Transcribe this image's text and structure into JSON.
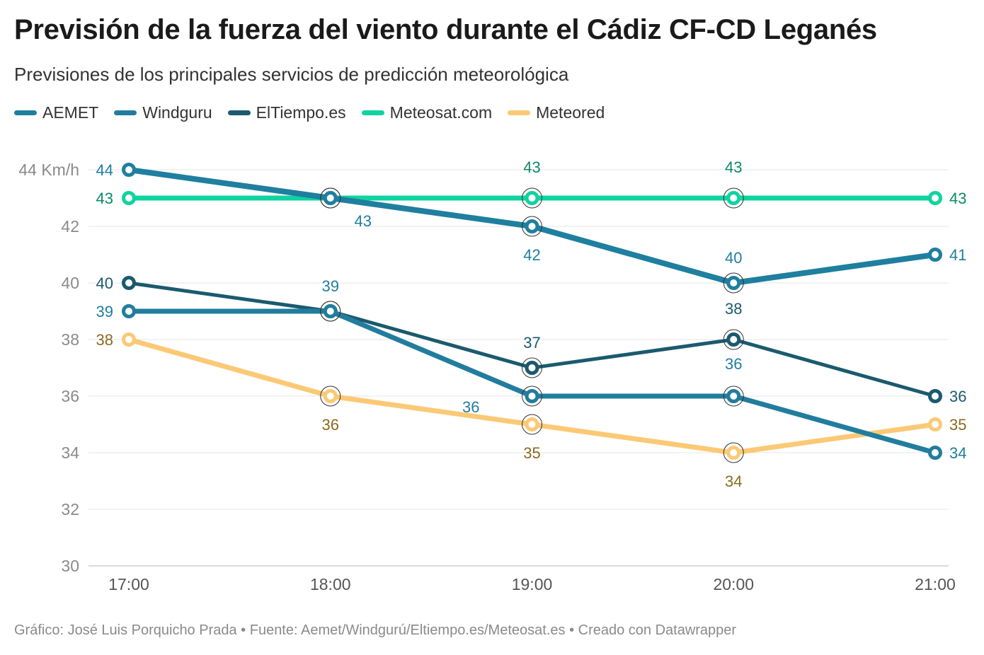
{
  "chart_data": {
    "type": "line",
    "title": "Previsión de la fuerza del viento durante el Cádiz CF-CD Leganés",
    "subtitle": "Previsiones de los principales servicios de predicción meteorológica",
    "x": [
      "17:00",
      "18:00",
      "19:00",
      "20:00",
      "21:00"
    ],
    "ylim": [
      30,
      44
    ],
    "yticks": [
      30,
      32,
      34,
      36,
      38,
      40,
      42,
      44
    ],
    "ytick_labels": [
      "30",
      "32",
      "34",
      "36",
      "38",
      "40",
      "42",
      "44 Km/h"
    ],
    "grid": true,
    "legend_position": "top-left",
    "series": [
      {
        "name": "AEMET",
        "values": [
          44,
          43,
          42,
          40,
          41
        ],
        "color": "#1f7f9f",
        "label_placement": [
          "left",
          "below",
          "below",
          "above",
          "right"
        ],
        "label_color": "#1f7f9f"
      },
      {
        "name": "Windguru",
        "values": [
          39,
          39,
          36,
          36,
          34
        ],
        "color": "#217d9e",
        "label_placement": [
          "left",
          "above",
          "left",
          "above",
          "right"
        ],
        "label_color": "#217d9e"
      },
      {
        "name": "ElTiempo.es",
        "values": [
          40,
          39,
          37,
          38,
          36
        ],
        "color": "#1b5a6e",
        "label_placement": [
          "left",
          "none",
          "above",
          "above",
          "right"
        ],
        "label_color": "#1b5a6e"
      },
      {
        "name": "Meteosat.com",
        "values": [
          43,
          43,
          43,
          43,
          43
        ],
        "color": "#0fd3a0",
        "label_placement": [
          "left",
          "none",
          "above",
          "above",
          "right"
        ],
        "label_color": "#0b8a68"
      },
      {
        "name": "Meteored",
        "values": [
          38,
          36,
          35,
          34,
          35
        ],
        "color": "#fbc975",
        "label_placement": [
          "left",
          "below",
          "below",
          "below",
          "right"
        ],
        "label_color": "#8a6a1f"
      }
    ]
  },
  "footer": "Gráfico: José Luis Porquicho Prada • Fuente: Aemet/Windgurú/Eltiempo.es/Meteosat.es • Creado con Datawrapper"
}
